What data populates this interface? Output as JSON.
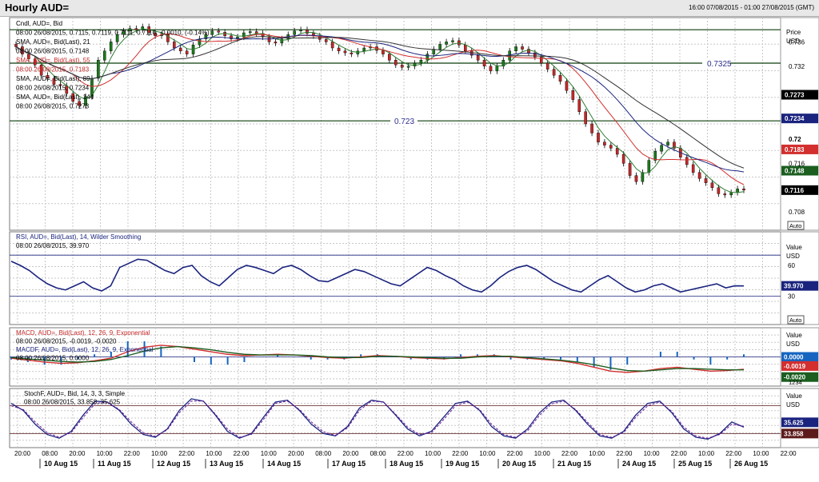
{
  "window": {
    "title": "Hourly AUD=",
    "range": "16:00 07/08/2015 - 01:00 27/08/2015 (GMT)"
  },
  "colors": {
    "price_line": "#2f2f8f",
    "sma21": "#2e7d32",
    "sma55": "#d32f2f",
    "sma89": "#1a237e",
    "sma144": "#333333",
    "rsi": "#1a237e",
    "macd": "#d32f2f",
    "signal": "#1b5e20",
    "histogram": "#1565c0",
    "stoch_k": "#1a237e",
    "stoch_d": "#6a1b9a",
    "support": "#0b3d0b"
  },
  "panels": {
    "price": {
      "legend": [
        "Cndl, AUD=, Bid",
        "08:00 26/08/2015, 0.7115, 0.7119, 0.7111, 0.7116, -0.0010, (-0.14%)",
        "SMA, AUD=, Bid(Last), 21",
        "08:00 26/08/2015, 0.7148",
        "SMA, AUD=, Bid(Last), 55",
        "08:00 26/08/2015, 0.7183",
        "SMA, AUD=, Bid(Last), 89",
        "08:00 26/08/2015, 0.7234",
        "SMA, AUD=, Bid(Last), 144",
        "08:00 26/08/2015, 0.7273"
      ],
      "axis_title": "Price",
      "axis_unit": "USD",
      "ticks": [
        "0.736",
        "0.732",
        "0.72",
        "0.716",
        "0.708"
      ],
      "badges": [
        "0.7273",
        "0.7234",
        "0.7183",
        "0.7148",
        "0.7116"
      ],
      "hlines": [
        "0.7325",
        "0.723"
      ],
      "auto": "Auto"
    },
    "rsi": {
      "legend": [
        "RSI, AUD=, Bid(Last), 14, Wilder Smoothing",
        "08:00 26/08/2015, 39.970"
      ],
      "axis_title": "Value",
      "axis_unit": "USD",
      "ticks": [
        "60",
        "30"
      ],
      "badge": "39.970",
      "auto": "Auto"
    },
    "macd": {
      "legend": [
        "MACD, AUD=, Bid(Last), 12, 26, 9, Exponential",
        "08:00 26/08/2015, -0.0019, -0.0020",
        "MACDF, AUD=, Bid(Last), 12, 26, 9, Exponential",
        "08:00 26/08/2015, 0.0000"
      ],
      "axis_title": "Value",
      "axis_unit": "USD",
      "badges": [
        "0.0000",
        "-0.0019",
        "-0.0020"
      ],
      "auto": "1234"
    },
    "stoch": {
      "legend": [
        "StochF, AUD=, Bid, 14, 3, 3, Simple",
        "08:00 26/08/2015, 33.858, 35.625"
      ],
      "axis_title": "Value",
      "axis_unit": "USD",
      "badges": [
        "35.625",
        "33.858"
      ]
    }
  },
  "x_axis": {
    "hours": [
      "20:00",
      "08:00",
      "20:00",
      "10:00",
      "22:00",
      "10:00",
      "22:00",
      "10:00",
      "22:00",
      "10:00",
      "20:00",
      "08:00",
      "20:00",
      "08:00",
      "22:00",
      "10:00",
      "22:00",
      "10:00",
      "22:00",
      "10:00",
      "22:00",
      "10:00",
      "22:00",
      "10:00",
      "22:00",
      "10:00",
      "22:00",
      "10:00",
      "22:00"
    ],
    "dates": [
      "10 Aug 15",
      "11 Aug 15",
      "12 Aug 15",
      "13 Aug 15",
      "14 Aug 15",
      "17 Aug 15",
      "18 Aug 15",
      "19 Aug 15",
      "20 Aug 15",
      "21 Aug 15",
      "24 Aug 15",
      "25 Aug 15",
      "26 Aug 15"
    ]
  },
  "chart_data": [
    {
      "type": "candlestick",
      "panel": "price",
      "ylim": [
        0.705,
        0.74
      ],
      "candles": [
        0.7352,
        0.734,
        0.7332,
        0.7322,
        0.7305,
        0.73,
        0.729,
        0.7288,
        0.7275,
        0.7262,
        0.7255,
        0.727,
        0.73,
        0.733,
        0.7345,
        0.736,
        0.7372,
        0.7378,
        0.7382,
        0.738,
        0.7385,
        0.7375,
        0.737,
        0.7372,
        0.736,
        0.735,
        0.7345,
        0.734,
        0.7355,
        0.7365,
        0.7372,
        0.7378,
        0.7376,
        0.737,
        0.7365,
        0.7368,
        0.7375,
        0.7377,
        0.7374,
        0.7368,
        0.736,
        0.7358,
        0.7365,
        0.7372,
        0.7378,
        0.738,
        0.7374,
        0.737,
        0.7364,
        0.736,
        0.735,
        0.7345,
        0.7342,
        0.734,
        0.7345,
        0.735,
        0.7352,
        0.7346,
        0.734,
        0.733,
        0.7322,
        0.7318,
        0.732,
        0.7325,
        0.733,
        0.734,
        0.7348,
        0.7356,
        0.736,
        0.7362,
        0.7355,
        0.7345,
        0.7338,
        0.733,
        0.732,
        0.7312,
        0.732,
        0.733,
        0.7345,
        0.7352,
        0.7348,
        0.7342,
        0.7335,
        0.7325,
        0.7315,
        0.7305,
        0.7295,
        0.728,
        0.7265,
        0.7245,
        0.7225,
        0.721,
        0.7195,
        0.719,
        0.7185,
        0.7175,
        0.716,
        0.714,
        0.713,
        0.7145,
        0.7165,
        0.718,
        0.719,
        0.7195,
        0.7185,
        0.717,
        0.7158,
        0.7145,
        0.7135,
        0.7128,
        0.712,
        0.711,
        0.7108,
        0.7112,
        0.7118,
        0.7116
      ],
      "last": 0.7116
    },
    {
      "type": "line",
      "panel": "rsi",
      "ylim": [
        0,
        100
      ],
      "series": [
        {
          "name": "RSI",
          "values": [
            64,
            60,
            55,
            48,
            42,
            38,
            36,
            40,
            44,
            38,
            35,
            40,
            58,
            62,
            66,
            65,
            60,
            55,
            52,
            58,
            60,
            50,
            44,
            40,
            48,
            56,
            60,
            58,
            55,
            52,
            58,
            60,
            56,
            50,
            45,
            44,
            48,
            52,
            56,
            54,
            50,
            46,
            42,
            40,
            46,
            52,
            58,
            55,
            50,
            46,
            40,
            36,
            34,
            40,
            48,
            54,
            58,
            60,
            56,
            50,
            44,
            40,
            36,
            34,
            40,
            46,
            50,
            44,
            38,
            34,
            36,
            40,
            42,
            38,
            34,
            36,
            38,
            40,
            42,
            38,
            40,
            39.97
          ]
        }
      ]
    },
    {
      "type": "line",
      "panel": "macd",
      "ylim": [
        -0.004,
        0.004
      ],
      "series": [
        {
          "name": "MACD",
          "values": [
            -0.0002,
            -0.0005,
            -0.0008,
            -0.001,
            -0.0009,
            -0.0006,
            -0.0002,
            0.0008,
            0.0015,
            0.0018,
            0.0016,
            0.0012,
            0.0008,
            0.0004,
            0.0002,
            0.0003,
            0.0004,
            0.0003,
            0.0001,
            -0.0001,
            -0.0002,
            0.0,
            0.0002,
            0.0001,
            -0.0001,
            -0.0002,
            -0.0003,
            -0.0001,
            0.0001,
            0.0002,
            0.0,
            -0.0002,
            -0.0004,
            -0.0006,
            -0.001,
            -0.0016,
            -0.0022,
            -0.0024,
            -0.0022,
            -0.0018,
            -0.0016,
            -0.0019,
            -0.0022,
            -0.0021,
            -0.0019
          ]
        },
        {
          "name": "MACDF",
          "values": [
            -0.0001,
            -0.0003,
            -0.0005,
            -0.0007,
            -0.0008,
            -0.0007,
            -0.0004,
            0.0002,
            0.0009,
            0.0014,
            0.0016,
            0.0014,
            0.0011,
            0.0007,
            0.0004,
            0.0003,
            0.0003,
            0.0003,
            0.0002,
            0.0,
            -0.0001,
            -0.0001,
            0.0001,
            0.0001,
            0.0,
            -0.0001,
            -0.0002,
            -0.0002,
            0.0,
            0.0001,
            0.0001,
            -0.0001,
            -0.0003,
            -0.0005,
            -0.0008,
            -0.0012,
            -0.0017,
            -0.0021,
            -0.0022,
            -0.002,
            -0.0018,
            -0.0018,
            -0.0019,
            -0.002,
            -0.002
          ]
        }
      ],
      "last": [
        -0.0019,
        -0.002,
        0.0
      ]
    },
    {
      "type": "line",
      "panel": "stoch",
      "ylim": [
        0,
        100
      ],
      "series": [
        {
          "name": "%K",
          "values": [
            85,
            70,
            40,
            18,
            10,
            25,
            60,
            90,
            88,
            70,
            40,
            18,
            12,
            30,
            70,
            95,
            90,
            60,
            25,
            10,
            20,
            55,
            88,
            92,
            70,
            40,
            20,
            15,
            35,
            75,
            92,
            88,
            60,
            30,
            15,
            25,
            55,
            85,
            90,
            70,
            35,
            15,
            10,
            30,
            65,
            88,
            92,
            70,
            40,
            15,
            10,
            25,
            60,
            85,
            90,
            65,
            30,
            12,
            8,
            20,
            45,
            33.858
          ]
        },
        {
          "name": "%D",
          "values": [
            80,
            72,
            45,
            22,
            12,
            22,
            55,
            85,
            88,
            72,
            45,
            22,
            14,
            28,
            65,
            90,
            90,
            62,
            30,
            12,
            18,
            50,
            85,
            90,
            72,
            45,
            24,
            16,
            32,
            70,
            90,
            88,
            62,
            34,
            18,
            22,
            50,
            80,
            88,
            72,
            40,
            18,
            12,
            26,
            60,
            84,
            90,
            72,
            44,
            18,
            12,
            22,
            55,
            80,
            88,
            68,
            34,
            15,
            10,
            18,
            40,
            35.625
          ]
        }
      ],
      "last": [
        35.625,
        33.858
      ]
    }
  ]
}
